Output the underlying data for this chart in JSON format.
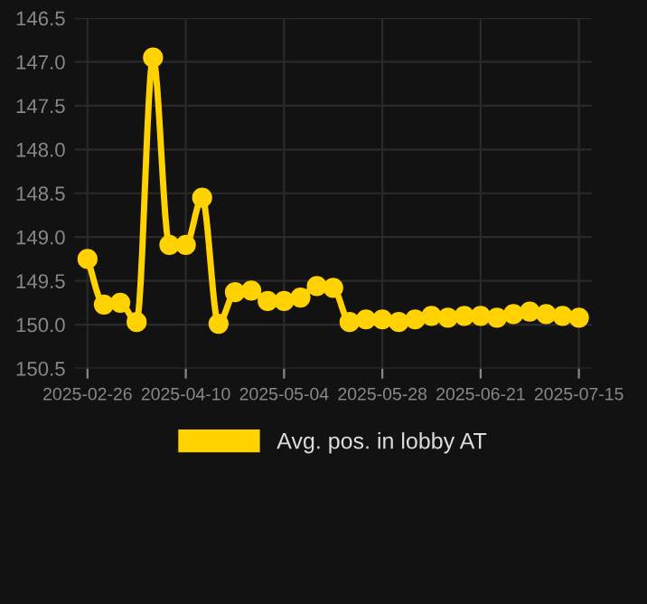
{
  "chart_data": {
    "type": "line",
    "categories": [
      "2025-02-26",
      null,
      null,
      null,
      null,
      null,
      "2025-04-10",
      null,
      null,
      null,
      null,
      null,
      "2025-05-04",
      null,
      null,
      null,
      null,
      null,
      "2025-05-28",
      null,
      null,
      null,
      null,
      null,
      "2025-06-21",
      null,
      null,
      null,
      null,
      null,
      "2025-07-15"
    ],
    "series": [
      {
        "name": "Avg. pos. in lobby AT",
        "color": "#ffd200",
        "values": [
          149.25,
          149.77,
          149.75,
          149.97,
          146.95,
          149.09,
          149.09,
          148.55,
          149.99,
          149.63,
          149.61,
          149.73,
          149.73,
          149.69,
          149.56,
          149.58,
          149.97,
          149.94,
          149.94,
          149.97,
          149.94,
          149.9,
          149.92,
          149.9,
          149.9,
          149.92,
          149.88,
          149.85,
          149.88,
          149.9,
          149.92
        ]
      }
    ],
    "ylim": [
      150.5,
      146.5
    ],
    "yticks": [
      {
        "value": 146.5,
        "label": "146.5"
      },
      {
        "value": 147,
        "label": "147.0"
      },
      {
        "value": 147.5,
        "label": "147.5"
      },
      {
        "value": 148,
        "label": "148.0"
      },
      {
        "value": 148.5,
        "label": "148.5"
      },
      {
        "value": 149,
        "label": "149.0"
      },
      {
        "value": 149.5,
        "label": "149.5"
      },
      {
        "value": 150,
        "label": "150.0"
      },
      {
        "value": 150.5,
        "label": "150.5"
      }
    ],
    "grid": true,
    "legend": "bottom",
    "marker": "circle",
    "line_style": "solid"
  }
}
